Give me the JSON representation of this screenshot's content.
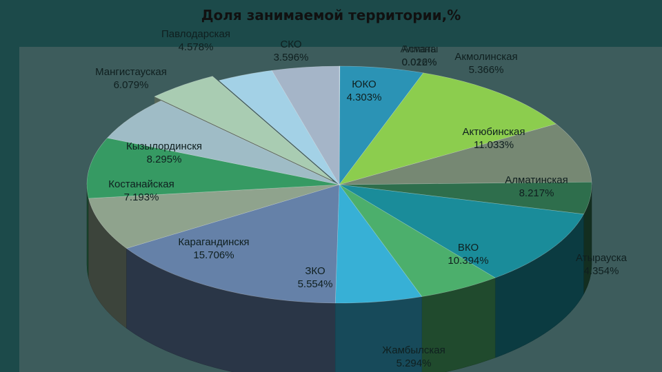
{
  "chart_data": {
    "type": "pie",
    "title": "Доля занимаемой территории,%",
    "slices": [
      {
        "name": "Астана",
        "label": "Астана",
        "value_label": "0.026%",
        "value": 0.026,
        "color": "#c9d1dd"
      },
      {
        "name": "Алматы",
        "label": "Алматы",
        "value_label": "0.012%",
        "value": 0.012,
        "color": "#b9c4d2"
      },
      {
        "name": "Акмолинская",
        "label": "Акмолинская",
        "value_label": "5.366%",
        "value": 5.366,
        "color": "#2b93b5"
      },
      {
        "name": "Актюбинская",
        "label": "Актюбинская",
        "value_label": "11.033%",
        "value": 11.033,
        "color": "#8ccd4e"
      },
      {
        "name": "Алматинская",
        "label": "Алматинская",
        "value_label": "8.217%",
        "value": 8.217,
        "color": "#768873"
      },
      {
        "name": "Атырауская",
        "label": "Атырауска",
        "value_label": "4.354%",
        "value": 4.354,
        "color": "#2e6e4c"
      },
      {
        "name": "ВКО",
        "label": "ВКО",
        "value_label": "10.394%",
        "value": 10.394,
        "color": "#1a8c9a"
      },
      {
        "name": "Жамбылская",
        "label": "Жамбылская",
        "value_label": "5.294%",
        "value": 5.294,
        "color": "#4caf6c"
      },
      {
        "name": "ЗКО",
        "label": "ЗКО",
        "value_label": "5.554%",
        "value": 5.554,
        "color": "#37b0d6"
      },
      {
        "name": "Карагандинская",
        "label": "Карагандинскя",
        "value_label": "15.706%",
        "value": 15.706,
        "color": "#6581a8"
      },
      {
        "name": "Костанайская",
        "label": "Костанайская",
        "value_label": "7.193%",
        "value": 7.193,
        "color": "#8fa38d"
      },
      {
        "name": "Кызылординская",
        "label": "Кызылординскя",
        "value_label": "8.295%",
        "value": 8.295,
        "color": "#369a63"
      },
      {
        "name": "Мангистауская",
        "label": "Мангистауская",
        "value_label": "6.079%",
        "value": 6.079,
        "color": "#9fbcc6"
      },
      {
        "name": "Павлодарская",
        "label": "Павлодарская",
        "value_label": "4.578%",
        "value": 4.578,
        "color": "#a9ccb2"
      },
      {
        "name": "СКО",
        "label": "СКО",
        "value_label": "3.596%",
        "value": 3.596,
        "color": "#a3d1e6"
      },
      {
        "name": "ЮКО",
        "label": "ЮКО",
        "value_label": "4.303%",
        "value": 4.303,
        "color": "#a5b5c8"
      }
    ],
    "exploded": [
      "Павлодарская"
    ],
    "style": "3d"
  }
}
